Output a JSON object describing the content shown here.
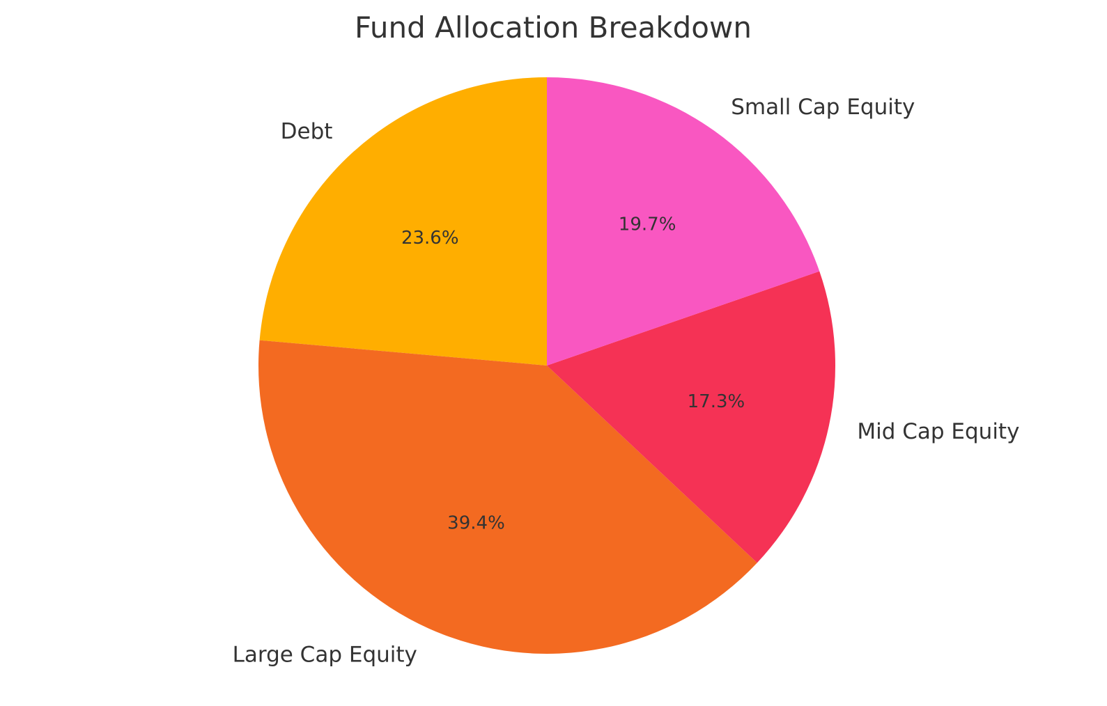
{
  "chart_data": {
    "type": "pie",
    "title": "Fund Allocation Breakdown",
    "start_angle_deg": 90,
    "direction": "counterclockwise",
    "slices": [
      {
        "label": "Debt",
        "value": 23.6,
        "pct_label": "23.6%",
        "color": "#FFAE00"
      },
      {
        "label": "Large Cap Equity",
        "value": 39.4,
        "pct_label": "39.4%",
        "color": "#F36A21"
      },
      {
        "label": "Mid Cap Equity",
        "value": 17.3,
        "pct_label": "17.3%",
        "color": "#F53255"
      },
      {
        "label": "Small Cap Equity",
        "value": 19.7,
        "pct_label": "19.7%",
        "color": "#F957C1"
      }
    ]
  }
}
